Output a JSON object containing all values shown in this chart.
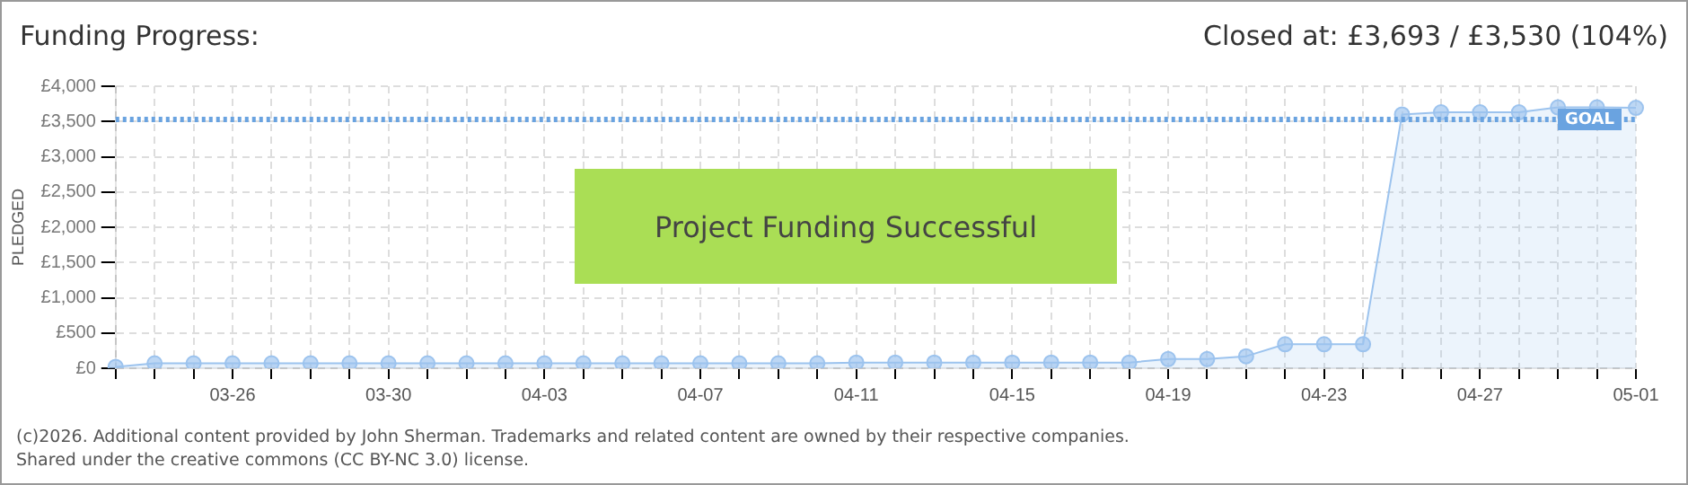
{
  "chart_data": {
    "type": "area",
    "title": "Funding Progress:",
    "subtitle": "Closed at: £3,693 / £3,530 (104%)",
    "ylabel": "PLEDGED",
    "categories": [
      null,
      null,
      null,
      "03-26",
      null,
      null,
      null,
      "03-30",
      null,
      null,
      null,
      "04-03",
      null,
      null,
      null,
      "04-07",
      null,
      null,
      null,
      "04-11",
      null,
      null,
      null,
      "04-15",
      null,
      null,
      null,
      "04-19",
      null,
      null,
      null,
      "04-23",
      null,
      null,
      null,
      "04-27",
      null,
      null,
      null,
      "05-01"
    ],
    "series": [
      {
        "color": "#9cc3ee",
        "values": [
          20,
          70,
          70,
          70,
          70,
          70,
          70,
          70,
          70,
          70,
          70,
          70,
          70,
          70,
          70,
          70,
          70,
          70,
          70,
          80,
          80,
          80,
          80,
          80,
          80,
          80,
          80,
          130,
          130,
          170,
          340,
          340,
          340,
          3600,
          3630,
          3630,
          3630,
          3700,
          3700,
          3693
        ]
      }
    ],
    "ylim": [
      0,
      4000
    ],
    "yticks": [
      {
        "value": 0,
        "label": "£0"
      },
      {
        "value": 500,
        "label": "£500"
      },
      {
        "value": 1000,
        "label": "£1,000"
      },
      {
        "value": 1500,
        "label": "£1,500"
      },
      {
        "value": 2000,
        "label": "£2,000"
      },
      {
        "value": 2500,
        "label": "£2,500"
      },
      {
        "value": 3000,
        "label": "£3,000"
      },
      {
        "value": 3500,
        "label": "£3,500"
      },
      {
        "value": 4000,
        "label": "£4,000"
      }
    ],
    "ref_lines": [
      {
        "axis": "y",
        "value": 3530,
        "label": "GOAL",
        "color": "#6aa3e0",
        "line_style": "dotted"
      }
    ],
    "grid": true,
    "marker": "circle",
    "legend": false,
    "annotations": [
      "Project Funding Successful",
      "(c)2026. Additional content provided by John Sherman. Trademarks and related content are owned by their respective companies.",
      "Shared under the creative commons (CC BY-NC 3.0) license."
    ]
  }
}
